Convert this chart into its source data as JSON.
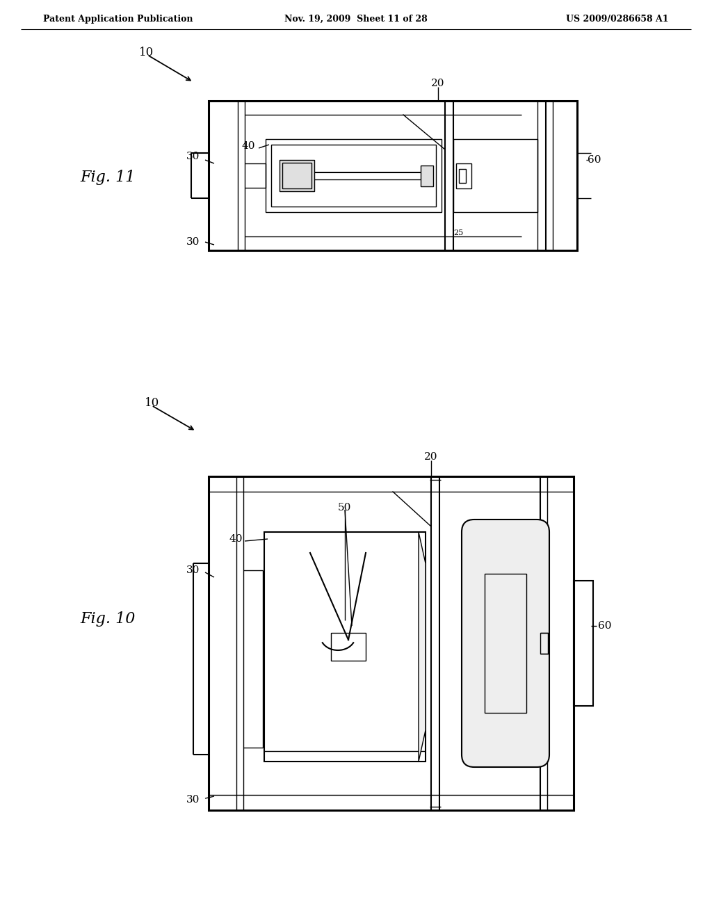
{
  "bg_color": "#ffffff",
  "line_color": "#000000",
  "header_left": "Patent Application Publication",
  "header_mid": "Nov. 19, 2009  Sheet 11 of 28",
  "header_right": "US 2009/0286658 A1",
  "fig11_label": "Fig. 11",
  "fig10_label": "Fig. 10",
  "lw_thin": 1.0,
  "lw_med": 1.5,
  "lw_thick": 2.2
}
